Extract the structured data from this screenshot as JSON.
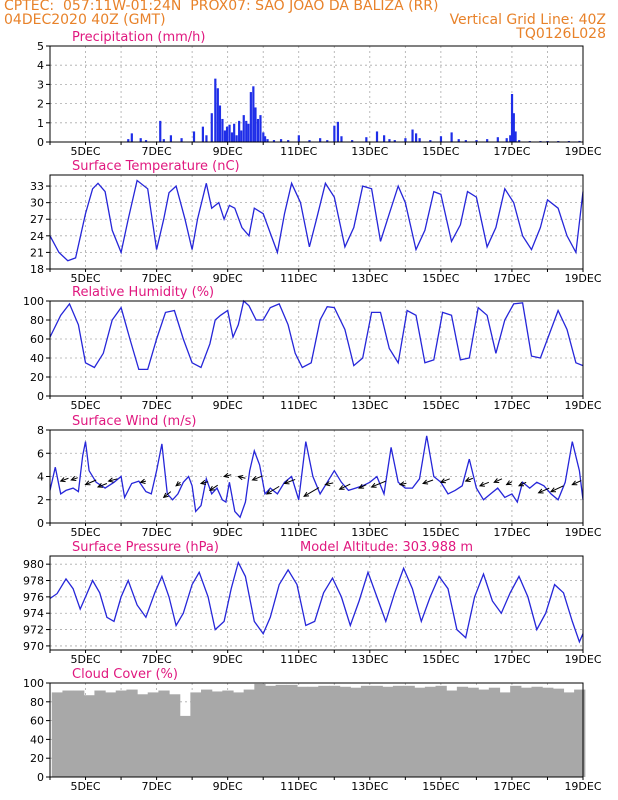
{
  "header": {
    "line1_left": "CPTEC:  057:11W-01:24N  PROX07: SAO JOAO DA BALIZA (RR)",
    "line2_left": "04DEC2020 40Z (GMT)",
    "line2_right": "Vertical Grid Line: 40Z",
    "line3_right": "TQ0126L028"
  },
  "colors": {
    "header": "#e8822a",
    "title": "#e0187f",
    "line": "#2626d9",
    "bar": "#1f2ee8",
    "cloud": "#a8a8a8"
  },
  "x_labels": [
    "5DEC",
    "7DEC",
    "9DEC",
    "11DEC",
    "13DEC",
    "15DEC",
    "17DEC",
    "19DEC"
  ],
  "chart_data": [
    {
      "type": "bar",
      "title": "Precipitation (mm/h)",
      "ylim": [
        0,
        5
      ],
      "yticks": [
        0,
        1,
        2,
        3,
        4,
        5
      ],
      "x_range": [
        4.0,
        19.0
      ],
      "x": [
        6.2,
        6.3,
        6.55,
        6.7,
        7.1,
        7.2,
        7.4,
        7.7,
        8.05,
        8.3,
        8.4,
        8.55,
        8.65,
        8.72,
        8.78,
        8.85,
        8.92,
        8.98,
        9.05,
        9.12,
        9.18,
        9.25,
        9.32,
        9.38,
        9.45,
        9.52,
        9.58,
        9.65,
        9.72,
        9.78,
        9.85,
        9.92,
        10.0,
        10.05,
        10.12,
        10.3,
        10.5,
        10.7,
        11.0,
        11.3,
        11.6,
        11.8,
        12.0,
        12.1,
        12.2,
        12.5,
        12.9,
        13.2,
        13.4,
        13.55,
        13.7,
        14.0,
        14.2,
        14.3,
        14.4,
        14.7,
        15.0,
        15.3,
        15.5,
        15.7,
        16.0,
        16.3,
        16.6,
        16.85,
        16.95,
        17.0,
        17.05,
        17.1,
        17.2,
        17.5,
        17.8,
        18.0,
        18.3,
        18.6,
        18.9
      ],
      "values": [
        0.15,
        0.45,
        0.2,
        0.1,
        1.1,
        0.15,
        0.35,
        0.2,
        0.55,
        0.8,
        0.35,
        1.5,
        3.3,
        2.8,
        1.9,
        1.2,
        0.6,
        0.8,
        0.9,
        0.5,
        0.95,
        0.35,
        1.1,
        0.6,
        1.4,
        1.1,
        0.95,
        2.6,
        2.9,
        1.8,
        1.2,
        1.4,
        0.5,
        0.3,
        0.15,
        0.1,
        0.15,
        0.1,
        0.35,
        0.1,
        0.2,
        0.1,
        0.85,
        1.05,
        0.3,
        0.1,
        0.25,
        0.55,
        0.35,
        0.15,
        0.1,
        0.2,
        0.65,
        0.45,
        0.2,
        0.1,
        0.3,
        0.5,
        0.15,
        0.1,
        0.1,
        0.15,
        0.25,
        0.2,
        0.35,
        2.5,
        1.5,
        0.55,
        0.1,
        0.05,
        0.05,
        0.05,
        0.05,
        0.05,
        0.05
      ]
    },
    {
      "type": "line",
      "title": "Surface Temperature (nC)",
      "ylim": [
        18,
        35
      ],
      "yticks": [
        18,
        21,
        24,
        27,
        30,
        33
      ],
      "x_range": [
        4.0,
        19.0
      ],
      "x": [
        4.0,
        4.25,
        4.5,
        4.72,
        5.0,
        5.2,
        5.35,
        5.55,
        5.75,
        6.0,
        6.2,
        6.45,
        6.75,
        7.0,
        7.2,
        7.35,
        7.55,
        7.8,
        8.0,
        8.15,
        8.4,
        8.55,
        8.75,
        8.9,
        9.05,
        9.2,
        9.4,
        9.6,
        9.75,
        10.0,
        10.2,
        10.4,
        10.6,
        10.8,
        11.05,
        11.3,
        11.5,
        11.75,
        12.0,
        12.3,
        12.55,
        12.8,
        13.05,
        13.3,
        13.55,
        13.8,
        14.0,
        14.3,
        14.55,
        14.8,
        15.0,
        15.3,
        15.55,
        15.75,
        16.0,
        16.3,
        16.55,
        16.8,
        17.05,
        17.3,
        17.55,
        17.8,
        18.0,
        18.3,
        18.55,
        18.8,
        19.0
      ],
      "y": [
        24,
        21,
        19.5,
        20,
        28,
        32.5,
        33.5,
        32,
        25,
        21,
        27,
        34,
        32.5,
        21.5,
        27,
        31.8,
        33,
        27,
        21.5,
        27,
        33.5,
        29,
        30,
        27,
        29.5,
        29,
        25.5,
        24,
        29,
        28,
        24.5,
        21,
        28,
        33.5,
        30,
        22,
        27,
        33.5,
        31,
        22,
        25.5,
        33,
        32.5,
        23,
        28,
        33,
        30,
        21.5,
        25,
        32,
        31.5,
        23,
        26,
        32,
        31,
        22,
        25.5,
        32.5,
        30,
        24,
        21.5,
        25.5,
        30.5,
        29,
        24,
        21,
        32
      ]
    },
    {
      "type": "line",
      "title": "Relative Humidity (%)",
      "ylim": [
        0,
        100
      ],
      "yticks": [
        0,
        20,
        40,
        60,
        80,
        100
      ],
      "x_range": [
        4.0,
        19.0
      ],
      "x": [
        4.0,
        4.3,
        4.55,
        4.8,
        5.0,
        5.25,
        5.5,
        5.75,
        6.0,
        6.25,
        6.5,
        6.75,
        7.0,
        7.25,
        7.5,
        7.75,
        8.0,
        8.25,
        8.5,
        8.65,
        8.8,
        9.0,
        9.15,
        9.3,
        9.45,
        9.6,
        9.8,
        10.0,
        10.2,
        10.45,
        10.7,
        10.9,
        11.1,
        11.35,
        11.6,
        11.8,
        12.0,
        12.3,
        12.55,
        12.8,
        13.05,
        13.3,
        13.55,
        13.8,
        14.05,
        14.3,
        14.55,
        14.8,
        15.05,
        15.3,
        15.55,
        15.8,
        16.05,
        16.3,
        16.55,
        16.8,
        17.05,
        17.3,
        17.55,
        17.8,
        18.0,
        18.3,
        18.55,
        18.8,
        19.0
      ],
      "y": [
        62,
        85,
        97,
        75,
        35,
        30,
        45,
        80,
        93,
        60,
        28,
        28,
        60,
        88,
        90,
        60,
        35,
        30,
        55,
        80,
        85,
        90,
        62,
        75,
        100,
        95,
        80,
        80,
        93,
        97,
        75,
        45,
        30,
        35,
        80,
        94,
        93,
        70,
        32,
        40,
        88,
        88,
        50,
        35,
        90,
        85,
        35,
        38,
        88,
        85,
        38,
        40,
        93,
        85,
        45,
        80,
        97,
        98,
        42,
        40,
        60,
        90,
        70,
        35,
        32
      ]
    },
    {
      "type": "line",
      "title": "Surface Wind (m/s)",
      "ylim": [
        0,
        8
      ],
      "yticks": [
        0,
        2,
        4,
        6,
        8
      ],
      "x_range": [
        4.0,
        19.0
      ],
      "x": [
        4.0,
        4.15,
        4.3,
        4.45,
        4.65,
        4.8,
        4.92,
        5.0,
        5.1,
        5.3,
        5.55,
        5.8,
        6.0,
        6.1,
        6.3,
        6.5,
        6.7,
        6.85,
        7.0,
        7.15,
        7.3,
        7.45,
        7.6,
        7.75,
        7.9,
        8.0,
        8.1,
        8.25,
        8.4,
        8.55,
        8.7,
        8.85,
        8.95,
        9.05,
        9.2,
        9.35,
        9.5,
        9.62,
        9.75,
        9.9,
        10.05,
        10.2,
        10.4,
        10.6,
        10.8,
        11.0,
        11.2,
        11.4,
        11.6,
        11.8,
        12.0,
        12.2,
        12.4,
        12.6,
        12.8,
        13.0,
        13.2,
        13.4,
        13.6,
        13.8,
        14.0,
        14.2,
        14.4,
        14.6,
        14.8,
        15.0,
        15.2,
        15.4,
        15.6,
        15.8,
        16.0,
        16.2,
        16.4,
        16.6,
        16.8,
        17.0,
        17.15,
        17.3,
        17.5,
        17.7,
        17.9,
        18.1,
        18.3,
        18.5,
        18.7,
        18.9,
        19.0
      ],
      "y": [
        2.8,
        4.8,
        2.5,
        2.8,
        3.0,
        2.7,
        5.8,
        7.0,
        4.5,
        3.5,
        3.0,
        3.5,
        4.0,
        2.2,
        3.4,
        3.6,
        2.7,
        2.5,
        4.5,
        6.8,
        2.5,
        2.0,
        2.5,
        3.5,
        4.0,
        3.2,
        1.0,
        1.5,
        3.8,
        2.5,
        3.0,
        2.0,
        1.8,
        3.5,
        1.0,
        0.5,
        1.8,
        4.5,
        6.2,
        5.0,
        2.5,
        3.0,
        2.5,
        3.5,
        4.0,
        2.0,
        7.0,
        4.0,
        2.5,
        3.5,
        4.5,
        3.5,
        2.8,
        3.0,
        3.2,
        3.5,
        4.0,
        2.5,
        6.5,
        3.5,
        3.0,
        3.0,
        3.8,
        7.5,
        4.0,
        3.5,
        2.5,
        2.8,
        3.2,
        5.5,
        3.0,
        2.0,
        2.5,
        3.0,
        2.2,
        2.5,
        1.8,
        3.5,
        3.0,
        3.5,
        3.2,
        2.5,
        2.0,
        3.5,
        7.0,
        4.5,
        2.0
      ],
      "vectors": [
        {
          "x": 4.3,
          "y": 3.6,
          "dx": 0.22,
          "dy": 0.25
        },
        {
          "x": 4.6,
          "y": 3.7,
          "dx": 0.18,
          "dy": 0.2
        },
        {
          "x": 5.0,
          "y": 3.3,
          "dx": 0.3,
          "dy": 0.4
        },
        {
          "x": 5.35,
          "y": 3.1,
          "dx": 0.25,
          "dy": 0.3
        },
        {
          "x": 5.65,
          "y": 3.6,
          "dx": 0.25,
          "dy": 0.2
        },
        {
          "x": 6.55,
          "y": 3.5,
          "dx": 0.15,
          "dy": 0.1
        },
        {
          "x": 7.2,
          "y": 2.2,
          "dx": 0.2,
          "dy": 0.5
        },
        {
          "x": 7.55,
          "y": 3.2,
          "dx": 0.12,
          "dy": 0.3
        },
        {
          "x": 8.25,
          "y": 3.4,
          "dx": 0.2,
          "dy": 0.15
        },
        {
          "x": 8.5,
          "y": 2.8,
          "dx": 0.22,
          "dy": 0.45
        },
        {
          "x": 8.9,
          "y": 4.0,
          "dx": 0.2,
          "dy": 0.15
        },
        {
          "x": 9.3,
          "y": 4.0,
          "dx": 0.2,
          "dy": -0.15
        },
        {
          "x": 9.7,
          "y": 3.7,
          "dx": 0.28,
          "dy": 0.35
        },
        {
          "x": 10.1,
          "y": 2.5,
          "dx": 0.35,
          "dy": 0.65
        },
        {
          "x": 10.6,
          "y": 3.4,
          "dx": 0.3,
          "dy": 0.35
        },
        {
          "x": 11.15,
          "y": 2.3,
          "dx": 0.42,
          "dy": 0.75
        },
        {
          "x": 11.75,
          "y": 3.3,
          "dx": 0.22,
          "dy": 0.15
        },
        {
          "x": 12.15,
          "y": 2.9,
          "dx": 0.3,
          "dy": 0.45
        },
        {
          "x": 12.7,
          "y": 3.0,
          "dx": 0.2,
          "dy": 0.3
        },
        {
          "x": 13.05,
          "y": 3.1,
          "dx": 0.4,
          "dy": 0.5
        },
        {
          "x": 13.85,
          "y": 3.3,
          "dx": 0.18,
          "dy": 0.12
        },
        {
          "x": 14.5,
          "y": 3.4,
          "dx": 0.28,
          "dy": 0.3
        },
        {
          "x": 15.0,
          "y": 3.5,
          "dx": 0.25,
          "dy": 0.3
        },
        {
          "x": 15.7,
          "y": 3.6,
          "dx": 0.2,
          "dy": 0.25
        },
        {
          "x": 16.1,
          "y": 3.2,
          "dx": 0.25,
          "dy": 0.3
        },
        {
          "x": 16.5,
          "y": 3.5,
          "dx": 0.22,
          "dy": 0.3
        },
        {
          "x": 16.85,
          "y": 3.3,
          "dx": 0.15,
          "dy": 0.25
        },
        {
          "x": 17.2,
          "y": 3.2,
          "dx": 0.2,
          "dy": 0.3
        },
        {
          "x": 17.75,
          "y": 2.6,
          "dx": 0.3,
          "dy": 0.4
        },
        {
          "x": 18.1,
          "y": 2.7,
          "dx": 0.35,
          "dy": 0.5
        },
        {
          "x": 18.7,
          "y": 3.3,
          "dx": 0.25,
          "dy": 0.35
        }
      ]
    },
    {
      "type": "line",
      "title": "Surface Pressure (hPa)",
      "subtitle": "Model Altitude: 303.988 m",
      "ylim": [
        969.5,
        981
      ],
      "yticks": [
        970,
        972,
        974,
        976,
        978,
        980
      ],
      "x_range": [
        4.0,
        19.0
      ],
      "x": [
        4.0,
        4.2,
        4.45,
        4.65,
        4.85,
        5.0,
        5.2,
        5.4,
        5.6,
        5.8,
        6.0,
        6.2,
        6.45,
        6.7,
        6.95,
        7.15,
        7.35,
        7.55,
        7.75,
        8.0,
        8.2,
        8.45,
        8.65,
        8.9,
        9.1,
        9.3,
        9.5,
        9.75,
        10.0,
        10.2,
        10.45,
        10.7,
        10.95,
        11.2,
        11.45,
        11.7,
        11.95,
        12.2,
        12.45,
        12.7,
        12.95,
        13.2,
        13.45,
        13.7,
        13.95,
        14.2,
        14.45,
        14.7,
        14.95,
        15.2,
        15.45,
        15.7,
        15.95,
        16.2,
        16.45,
        16.7,
        16.95,
        17.2,
        17.45,
        17.7,
        17.95,
        18.2,
        18.45,
        18.7,
        18.9,
        19.0
      ],
      "y": [
        975.8,
        976.4,
        978.2,
        977.0,
        974.5,
        976.0,
        978.0,
        976.5,
        973.5,
        973.0,
        976.0,
        978.0,
        975.0,
        973.5,
        976.5,
        978.5,
        976.0,
        972.5,
        974.0,
        977.5,
        979.0,
        976.0,
        972.0,
        973.0,
        977.0,
        980.2,
        978.5,
        973.0,
        971.5,
        973.5,
        977.5,
        979.3,
        977.5,
        972.5,
        973.0,
        976.5,
        978.3,
        976.0,
        972.5,
        975.5,
        979.0,
        976.0,
        973.0,
        976.5,
        979.5,
        977.0,
        973.0,
        976.0,
        978.5,
        977.0,
        972.0,
        971.0,
        976.0,
        978.8,
        975.5,
        974.0,
        976.5,
        978.5,
        976.0,
        972.0,
        974.0,
        977.5,
        976.5,
        973.0,
        970.5,
        971.5
      ]
    },
    {
      "type": "bar",
      "title": "Cloud Cover (%)",
      "ylim": [
        0,
        100
      ],
      "yticks": [
        0,
        20,
        40,
        60,
        80,
        100
      ],
      "x_range": [
        4.0,
        19.0
      ],
      "x": [
        4.05,
        4.35,
        4.65,
        4.95,
        5.25,
        5.55,
        5.85,
        6.15,
        6.45,
        6.75,
        7.05,
        7.35,
        7.65,
        7.95,
        8.25,
        8.55,
        8.85,
        9.15,
        9.45,
        9.75,
        10.05,
        10.35,
        10.65,
        10.95,
        11.25,
        11.55,
        11.85,
        12.15,
        12.45,
        12.75,
        13.05,
        13.35,
        13.65,
        13.95,
        14.25,
        14.55,
        14.85,
        15.15,
        15.45,
        15.75,
        16.05,
        16.35,
        16.65,
        16.95,
        17.25,
        17.55,
        17.85,
        18.15,
        18.45,
        18.75
      ],
      "values": [
        90,
        92,
        92,
        87,
        92,
        90,
        92,
        93,
        88,
        90,
        92,
        88,
        65,
        90,
        93,
        91,
        92,
        90,
        93,
        99,
        97,
        98,
        98,
        96,
        96,
        97,
        97,
        96,
        95,
        97,
        97,
        96,
        97,
        97,
        95,
        96,
        97,
        92,
        96,
        95,
        93,
        95,
        90,
        97,
        95,
        96,
        95,
        94,
        90,
        93
      ]
    }
  ]
}
